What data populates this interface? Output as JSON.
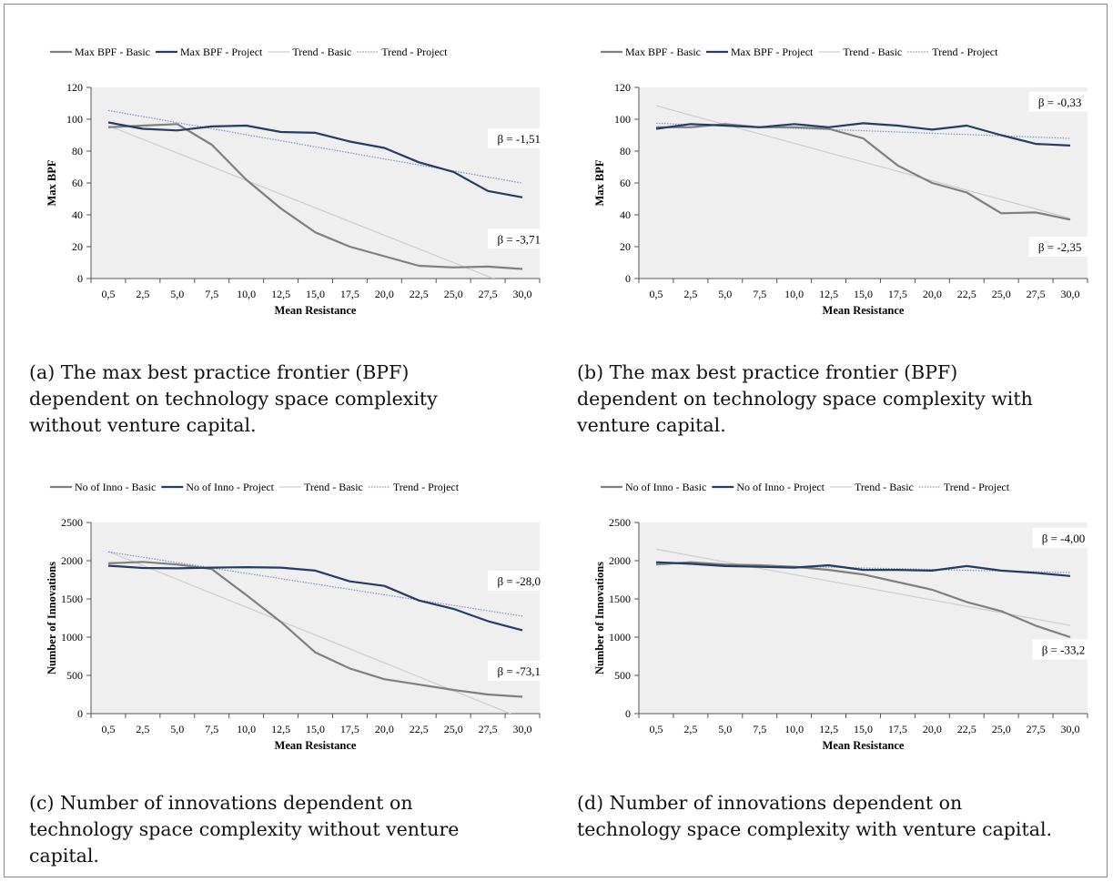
{
  "panels": [
    {
      "caption": "(a) The max best practice frontier (BPF) dependent on technology space complexity without venture capital.",
      "chart_data": {
        "type": "line",
        "xlabel": "Mean Resistance",
        "ylabel": "Max BPF",
        "ylim": [
          0,
          120
        ],
        "yticks": [
          0,
          20,
          40,
          60,
          80,
          100,
          120
        ],
        "yticklabels": [
          "0",
          "20",
          "40",
          "60",
          "80",
          "100",
          "120"
        ],
        "categories": [
          "0,5",
          "2,5",
          "5,0",
          "7,5",
          "10,0",
          "12,5",
          "15,0",
          "17,5",
          "20,0",
          "22,5",
          "25,0",
          "27,5",
          "30,0"
        ],
        "grid": false,
        "legend_position": "top",
        "series": [
          {
            "name": "Max BPF - Basic",
            "kind": "data",
            "color": "#7f7f7f",
            "values": [
              95,
              96,
              97,
              84,
              62,
              44,
              29,
              20,
              14,
              8,
              7,
              7.5,
              6
            ]
          },
          {
            "name": "Max BPF - Project",
            "kind": "data",
            "color": "#243c66",
            "values": [
              98,
              94,
              93,
              95.5,
              96,
              92,
              91.5,
              86,
              82,
              73,
              67,
              55,
              51
            ]
          },
          {
            "name": "Trend - Basic",
            "kind": "trend",
            "color": "#cdcdcd",
            "values": [
              96,
              87.4,
              78.8,
              70.2,
              61.6,
              53,
              44.4,
              35.8,
              27.2,
              18.6,
              10,
              1.4,
              -7.2
            ]
          },
          {
            "name": "Trend - Project",
            "kind": "trend-dotted",
            "color": "#8090c8",
            "values": [
              105.5,
              101.7,
              97.9,
              94.1,
              90.3,
              86.5,
              82.7,
              78.9,
              75.1,
              71.3,
              67.5,
              63.7,
              59.9
            ]
          }
        ],
        "annotations": [
          {
            "text": "β = -1,51",
            "x_index": 11.9,
            "y": 88
          },
          {
            "text": "β = -3,71",
            "x_index": 11.9,
            "y": 25
          }
        ]
      }
    },
    {
      "caption": "(b) The max best practice frontier (BPF) dependent on technology space complexity with venture capital.",
      "chart_data": {
        "type": "line",
        "xlabel": "Mean Resistance",
        "ylabel": "Max BPF",
        "ylim": [
          0,
          120
        ],
        "yticks": [
          0,
          20,
          40,
          60,
          80,
          100,
          120
        ],
        "yticklabels": [
          "0",
          "20",
          "40",
          "60",
          "80",
          "100",
          "120"
        ],
        "categories": [
          "0,5",
          "2,5",
          "5,0",
          "7,5",
          "10,0",
          "12,5",
          "15,0",
          "17,5",
          "20,0",
          "22,5",
          "25,0",
          "27,5",
          "30,0"
        ],
        "grid": false,
        "legend_position": "top",
        "series": [
          {
            "name": "Max BPF - Basic",
            "kind": "data",
            "color": "#7f7f7f",
            "values": [
              95,
              95,
              97,
              95,
              95,
              94,
              88,
              71,
              60,
              54,
              41,
              41.5,
              37
            ]
          },
          {
            "name": "Max BPF - Project",
            "kind": "data",
            "color": "#243c66",
            "values": [
              94,
              97,
              96,
              95,
              97,
              95,
              97.5,
              96,
              93.5,
              96,
              90,
              84.5,
              83.5
            ]
          },
          {
            "name": "Trend - Basic",
            "kind": "trend",
            "color": "#cdcdcd",
            "values": [
              108.5,
              102.6,
              96.7,
              90.8,
              84.9,
              79,
              73.2,
              67.3,
              61.4,
              55.5,
              49.6,
              43.7,
              37.8
            ]
          },
          {
            "name": "Trend - Project",
            "kind": "trend-dotted",
            "color": "#8090c8",
            "values": [
              97.5,
              96.7,
              95.9,
              95.1,
              94.3,
              93.5,
              92.8,
              92,
              91.2,
              90.4,
              89.6,
              88.8,
              88
            ]
          }
        ],
        "annotations": [
          {
            "text": "β = -0,33",
            "x_index": 11.7,
            "y": 111
          },
          {
            "text": "β = -2,35",
            "x_index": 11.7,
            "y": 20
          }
        ]
      }
    },
    {
      "caption": "(c) Number of innovations dependent on technology space complexity without venture capital.",
      "chart_data": {
        "type": "line",
        "xlabel": "Mean Resistance",
        "ylabel": "Number of Innovations",
        "ylim": [
          0,
          2500
        ],
        "yticks": [
          0,
          500,
          1000,
          1500,
          2000,
          2500
        ],
        "yticklabels": [
          "0",
          "500",
          "1000",
          "1500",
          "2000",
          "2500"
        ],
        "categories": [
          "0,5",
          "2,5",
          "5,0",
          "7,5",
          "10,0",
          "12,5",
          "15,0",
          "17,5",
          "20,0",
          "22,5",
          "25,0",
          "27,5",
          "30,0"
        ],
        "grid": false,
        "legend_position": "top",
        "series": [
          {
            "name": "No of Inno - Basic",
            "kind": "data",
            "color": "#7f7f7f",
            "values": [
              1965,
              1985,
              1950,
              1890,
              1550,
              1200,
              800,
              590,
              450,
              380,
              310,
              250,
              220
            ]
          },
          {
            "name": "No of Inno - Project",
            "kind": "data",
            "color": "#243c66",
            "values": [
              1935,
              1905,
              1900,
              1910,
              1915,
              1910,
              1870,
              1730,
              1670,
              1480,
              1370,
              1210,
              1090
            ]
          },
          {
            "name": "Trend - Basic",
            "kind": "trend",
            "color": "#cdcdcd",
            "values": [
              2120,
              1938,
              1756,
              1574,
              1392,
              1210,
              1028,
              846,
              664,
              482,
              300,
              118,
              -64
            ]
          },
          {
            "name": "Trend - Project",
            "kind": "trend-dotted",
            "color": "#8090c8",
            "values": [
              2115,
              2045,
              1975,
              1905,
              1835,
              1765,
              1695,
              1625,
              1555,
              1485,
              1415,
              1345,
              1275
            ]
          }
        ],
        "annotations": [
          {
            "text": "β = -28,0",
            "x_index": 11.9,
            "y": 1740
          },
          {
            "text": "β = -73,1",
            "x_index": 11.9,
            "y": 560
          }
        ]
      }
    },
    {
      "caption": "(d) Number of innovations dependent on technology space complexity with venture capital.",
      "chart_data": {
        "type": "line",
        "xlabel": "Mean Resistance",
        "ylabel": "Number of Innovations",
        "ylim": [
          0,
          2500
        ],
        "yticks": [
          0,
          500,
          1000,
          1500,
          2000,
          2500
        ],
        "yticklabels": [
          "0",
          "500",
          "1000",
          "1500",
          "2000",
          "2500"
        ],
        "categories": [
          "0,5",
          "2,5",
          "5,0",
          "7,5",
          "10,0",
          "12,5",
          "15,0",
          "17,5",
          "20,0",
          "22,5",
          "25,0",
          "27,5",
          "30,0"
        ],
        "grid": false,
        "legend_position": "top",
        "series": [
          {
            "name": "No of Inno - Basic",
            "kind": "data",
            "color": "#7f7f7f",
            "values": [
              1950,
              1980,
              1950,
              1940,
              1920,
              1880,
              1820,
              1720,
              1620,
              1460,
              1340,
              1150,
              1000
            ]
          },
          {
            "name": "No of Inno - Project",
            "kind": "data",
            "color": "#243c66",
            "values": [
              1980,
              1960,
              1930,
              1920,
              1910,
              1940,
              1880,
              1880,
              1870,
              1930,
              1870,
              1840,
              1800
            ]
          },
          {
            "name": "Trend - Basic",
            "kind": "trend",
            "color": "#cdcdcd",
            "values": [
              2150,
              2067,
              1984,
              1901,
              1818,
              1735,
              1652,
              1569,
              1486,
              1403,
              1320,
              1237,
              1154
            ]
          },
          {
            "name": "Trend - Project",
            "kind": "trend-dotted",
            "color": "#8090c8",
            "values": [
              1965,
              1955,
              1945,
              1935,
              1925,
              1915,
              1905,
              1895,
              1885,
              1875,
              1865,
              1855,
              1845
            ]
          }
        ],
        "annotations": [
          {
            "text": "β = -4,00",
            "x_index": 11.8,
            "y": 2300
          },
          {
            "text": "β = -33,2",
            "x_index": 11.8,
            "y": 840
          }
        ]
      }
    }
  ]
}
